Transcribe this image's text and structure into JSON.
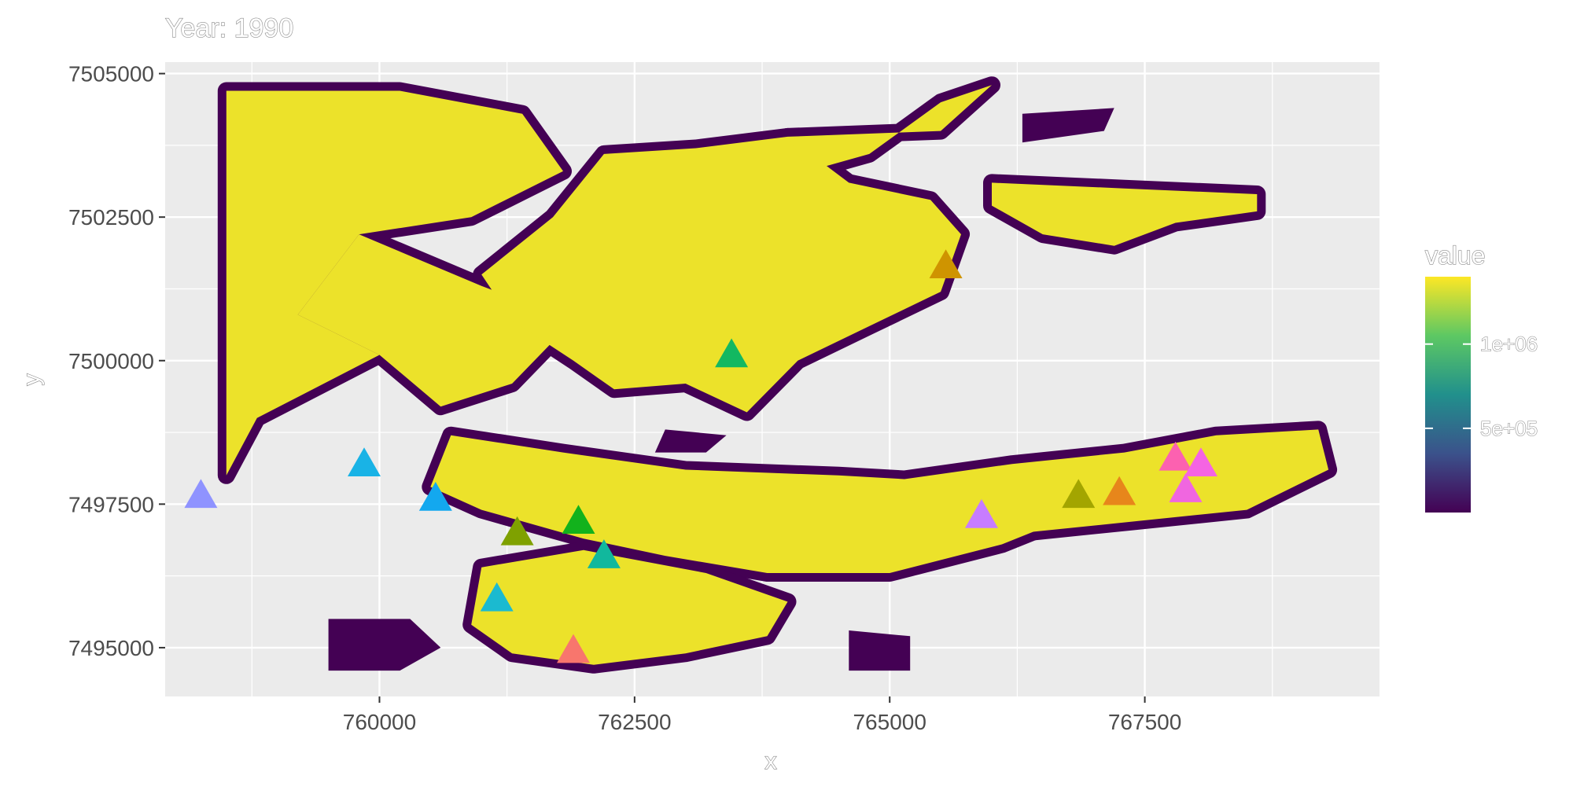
{
  "chart_data": {
    "type": "raster-map",
    "title": "Year: 1990",
    "xlabel": "x",
    "ylabel": "y",
    "xlim": [
      757900,
      769800
    ],
    "ylim": [
      7494150,
      7505200
    ],
    "x_ticks": [
      {
        "value": 760000,
        "label": "760000"
      },
      {
        "value": 762500,
        "label": "762500"
      },
      {
        "value": 765000,
        "label": "765000"
      },
      {
        "value": 767500,
        "label": "767500"
      }
    ],
    "y_ticks": [
      {
        "value": 7495000,
        "label": "7495000"
      },
      {
        "value": 7497500,
        "label": "7497500"
      },
      {
        "value": 7500000,
        "label": "7500000"
      },
      {
        "value": 7502500,
        "label": "7502500"
      },
      {
        "value": 7505000,
        "label": "7505000"
      }
    ],
    "grid": true,
    "background_color": "#ebebeb",
    "legend": {
      "title": "value",
      "placement": "right",
      "type": "colorbar",
      "palette": [
        "#440154",
        "#3b528b",
        "#21908c",
        "#5dc863",
        "#fde725"
      ],
      "ticks": [
        {
          "value": 500000,
          "label": "5e+05"
        },
        {
          "value": 1000000,
          "label": "1e+06"
        }
      ],
      "range": [
        0,
        1400000
      ]
    },
    "raster": {
      "fill_color": "#ece22a",
      "edge_color": "#440154",
      "regions": [
        {
          "name": "west-block",
          "polygon": [
            [
              758500,
              7504700
            ],
            [
              760200,
              7504700
            ],
            [
              761400,
              7504300
            ],
            [
              761800,
              7503300
            ],
            [
              760900,
              7502500
            ],
            [
              759800,
              7502200
            ],
            [
              759200,
              7500800
            ],
            [
              760000,
              7500100
            ],
            [
              758800,
              7499000
            ],
            [
              758500,
              7498000
            ]
          ]
        },
        {
          "name": "west-peninsula",
          "polygon": [
            [
              759800,
              7502200
            ],
            [
              761000,
              7501300
            ],
            [
              761900,
              7500700
            ],
            [
              761300,
              7499600
            ],
            [
              760600,
              7499200
            ],
            [
              760000,
              7500100
            ],
            [
              759200,
              7500800
            ]
          ]
        },
        {
          "name": "central-north",
          "polygon": [
            [
              761700,
              7502500
            ],
            [
              762200,
              7503600
            ],
            [
              763100,
              7503700
            ],
            [
              764000,
              7503900
            ],
            [
              764600,
              7503100
            ],
            [
              765400,
              7502800
            ],
            [
              765700,
              7502200
            ],
            [
              765500,
              7501200
            ],
            [
              764800,
              7500600
            ],
            [
              764100,
              7500000
            ],
            [
              763600,
              7499100
            ],
            [
              763000,
              7499600
            ],
            [
              762300,
              7499500
            ],
            [
              761900,
              7500000
            ],
            [
              761300,
              7500700
            ],
            [
              761000,
              7501500
            ]
          ]
        },
        {
          "name": "northeast-finger",
          "polygon": [
            [
              764000,
              7503900
            ],
            [
              765500,
              7504000
            ],
            [
              766000,
              7504800
            ],
            [
              765500,
              7504500
            ],
            [
              764800,
              7503600
            ],
            [
              764200,
              7503300
            ]
          ]
        },
        {
          "name": "northeast-island",
          "polygon": [
            [
              766000,
              7503100
            ],
            [
              767300,
              7503000
            ],
            [
              768600,
              7502900
            ],
            [
              768600,
              7502600
            ],
            [
              767800,
              7502400
            ],
            [
              767200,
              7502000
            ],
            [
              766500,
              7502200
            ],
            [
              766000,
              7502700
            ]
          ]
        },
        {
          "name": "central-south",
          "polygon": [
            [
              760700,
              7498700
            ],
            [
              761800,
              7498400
            ],
            [
              763000,
              7498100
            ],
            [
              764500,
              7498000
            ],
            [
              765500,
              7497900
            ],
            [
              766300,
              7497700
            ],
            [
              766800,
              7497300
            ],
            [
              766100,
              7496800
            ],
            [
              765000,
              7496300
            ],
            [
              763800,
              7496300
            ],
            [
              762800,
              7496600
            ],
            [
              762000,
              7496900
            ],
            [
              761000,
              7497400
            ],
            [
              760500,
              7497800
            ]
          ]
        },
        {
          "name": "south-lobe",
          "polygon": [
            [
              761000,
              7496400
            ],
            [
              762000,
              7496700
            ],
            [
              763200,
              7496300
            ],
            [
              764000,
              7495800
            ],
            [
              763800,
              7495200
            ],
            [
              763000,
              7494900
            ],
            [
              762100,
              7494700
            ],
            [
              761300,
              7494900
            ],
            [
              760900,
              7495400
            ]
          ]
        },
        {
          "name": "east-arm",
          "polygon": [
            [
              765000,
              7497900
            ],
            [
              766200,
              7498200
            ],
            [
              767300,
              7498400
            ],
            [
              768200,
              7498700
            ],
            [
              769200,
              7498800
            ],
            [
              769300,
              7498100
            ],
            [
              768500,
              7497400
            ],
            [
              767400,
              7497200
            ],
            [
              766300,
              7497000
            ],
            [
              765500,
              7497100
            ]
          ]
        }
      ],
      "margins": [
        {
          "name": "south-edge-blob",
          "polygon": [
            [
              759500,
              7495500
            ],
            [
              760300,
              7495500
            ],
            [
              760600,
              7495000
            ],
            [
              760200,
              7494600
            ],
            [
              759500,
              7494600
            ]
          ]
        },
        {
          "name": "south-right-blob",
          "polygon": [
            [
              764600,
              7495300
            ],
            [
              765200,
              7495200
            ],
            [
              765200,
              7494600
            ],
            [
              764600,
              7494600
            ]
          ]
        },
        {
          "name": "center-dark-patch",
          "polygon": [
            [
              762800,
              7498800
            ],
            [
              763400,
              7498700
            ],
            [
              763200,
              7498400
            ],
            [
              762700,
              7498400
            ]
          ]
        },
        {
          "name": "north-dark-patch",
          "polygon": [
            [
              766300,
              7504300
            ],
            [
              767200,
              7504400
            ],
            [
              767100,
              7504000
            ],
            [
              766300,
              7503800
            ]
          ]
        }
      ]
    },
    "points": [
      {
        "x": 758250,
        "y": 7497650,
        "color": "#8f93ff"
      },
      {
        "x": 759850,
        "y": 7498200,
        "color": "#19b3e6"
      },
      {
        "x": 760550,
        "y": 7497600,
        "color": "#13a8ef"
      },
      {
        "x": 761350,
        "y": 7497000,
        "color": "#7fa100"
      },
      {
        "x": 761950,
        "y": 7497200,
        "color": "#12b21c"
      },
      {
        "x": 762200,
        "y": 7496600,
        "color": "#11b89d"
      },
      {
        "x": 761150,
        "y": 7495850,
        "color": "#1bbad0"
      },
      {
        "x": 761900,
        "y": 7494950,
        "color": "#f8766d"
      },
      {
        "x": 763450,
        "y": 7500100,
        "color": "#13b861"
      },
      {
        "x": 765550,
        "y": 7501650,
        "color": "#cf9400"
      },
      {
        "x": 765900,
        "y": 7497300,
        "color": "#c77cff"
      },
      {
        "x": 766850,
        "y": 7497650,
        "color": "#a3a500"
      },
      {
        "x": 767250,
        "y": 7497700,
        "color": "#e7861b"
      },
      {
        "x": 767800,
        "y": 7498300,
        "color": "#fc61b0"
      },
      {
        "x": 767900,
        "y": 7497750,
        "color": "#f066e0"
      },
      {
        "x": 768050,
        "y": 7498200,
        "color": "#f564e3"
      }
    ]
  }
}
